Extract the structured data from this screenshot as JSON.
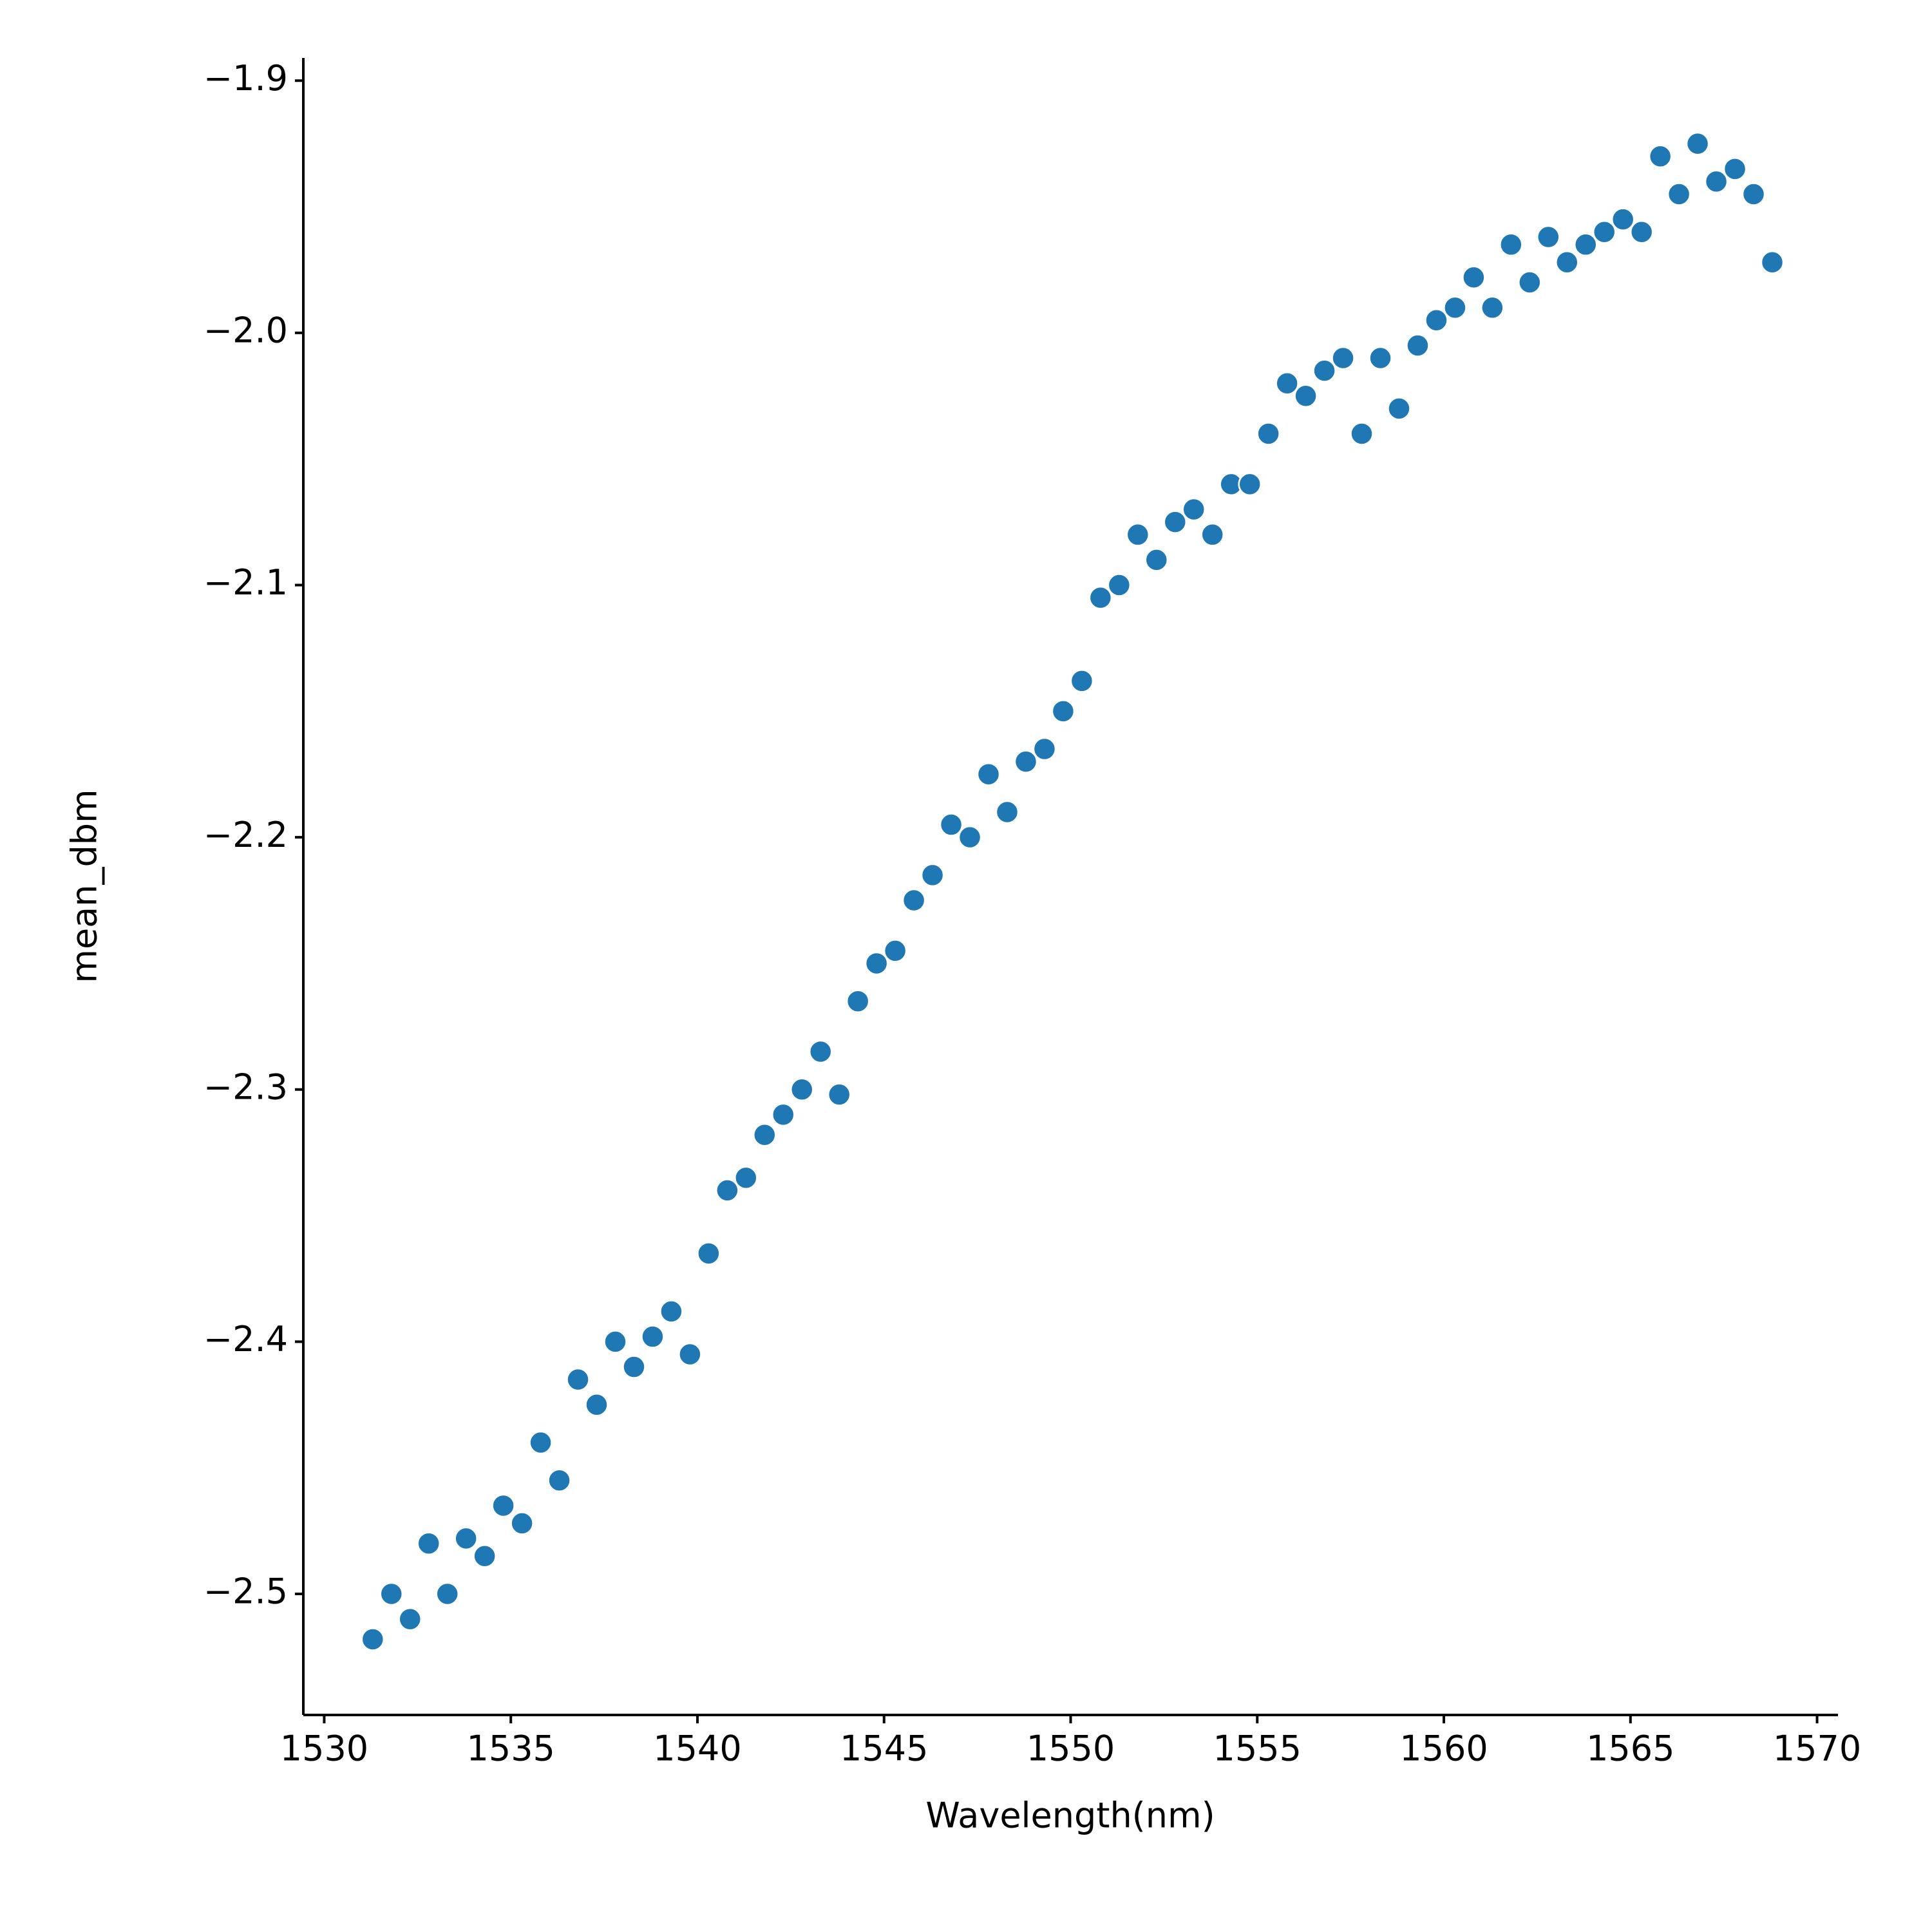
{
  "chart_data": {
    "type": "scatter",
    "xlabel": "Wavelength(nm)",
    "ylabel": "mean_dbm",
    "color": "#1f77b4",
    "x": [
      1531.3,
      1531.8,
      1532.3,
      1532.8,
      1533.3,
      1533.8,
      1534.3,
      1534.8,
      1535.3,
      1535.8,
      1536.3,
      1536.8,
      1537.3,
      1537.8,
      1538.3,
      1538.8,
      1539.3,
      1539.8,
      1540.3,
      1540.8,
      1541.3,
      1541.8,
      1542.3,
      1542.8,
      1543.3,
      1543.8,
      1544.3,
      1544.8,
      1545.3,
      1545.8,
      1546.3,
      1546.8,
      1547.3,
      1547.8,
      1548.3,
      1548.8,
      1549.3,
      1549.8,
      1550.3,
      1550.8,
      1551.3,
      1551.8,
      1552.3,
      1552.8,
      1553.3,
      1553.8,
      1554.3,
      1554.8,
      1555.3,
      1555.8,
      1556.3,
      1556.8,
      1557.3,
      1557.8,
      1558.3,
      1558.8,
      1559.3,
      1559.8,
      1560.3,
      1560.8,
      1561.3,
      1561.8,
      1562.3,
      1562.8,
      1563.3,
      1563.8,
      1564.3,
      1564.8,
      1565.3,
      1565.8,
      1566.3,
      1566.8,
      1567.3,
      1567.8,
      1568.3,
      1568.8
    ],
    "values": [
      -2.518,
      -2.5,
      -2.51,
      -2.48,
      -2.5,
      -2.478,
      -2.485,
      -2.465,
      -2.472,
      -2.44,
      -2.455,
      -2.415,
      -2.425,
      -2.4,
      -2.41,
      -2.398,
      -2.388,
      -2.405,
      -2.365,
      -2.34,
      -2.335,
      -2.318,
      -2.31,
      -2.3,
      -2.285,
      -2.302,
      -2.265,
      -2.25,
      -2.245,
      -2.225,
      -2.215,
      -2.195,
      -2.2,
      -2.175,
      -2.19,
      -2.17,
      -2.165,
      -2.15,
      -2.138,
      -2.105,
      -2.1,
      -2.08,
      -2.09,
      -2.075,
      -2.07,
      -2.08,
      -2.06,
      -2.06,
      -2.04,
      -2.02,
      -2.025,
      -2.015,
      -2.01,
      -2.04,
      -2.01,
      -2.03,
      -2.005,
      -1.995,
      -1.99,
      -1.978,
      -1.99,
      -1.965,
      -1.98,
      -1.962,
      -1.972,
      -1.965,
      -1.96,
      -1.955,
      -1.96,
      -1.93,
      -1.945,
      -1.925,
      -1.94,
      -1.935,
      -1.945,
      -1.972
    ],
    "xlim": [
      1529.44,
      1570.56
    ],
    "ylim": [
      -2.548,
      -1.891
    ],
    "xticks": [
      1530,
      1535,
      1540,
      1545,
      1550,
      1555,
      1560,
      1565,
      1570
    ],
    "yticks": [
      {
        "value": -2.5,
        "label": "−2.5"
      },
      {
        "value": -2.4,
        "label": "−2.4"
      },
      {
        "value": -2.3,
        "label": "−2.3"
      },
      {
        "value": -2.2,
        "label": "−2.2"
      },
      {
        "value": -2.1,
        "label": "−2.1"
      },
      {
        "value": -2.0,
        "label": "−2.0"
      },
      {
        "value": -1.9,
        "label": "−1.9"
      }
    ]
  }
}
